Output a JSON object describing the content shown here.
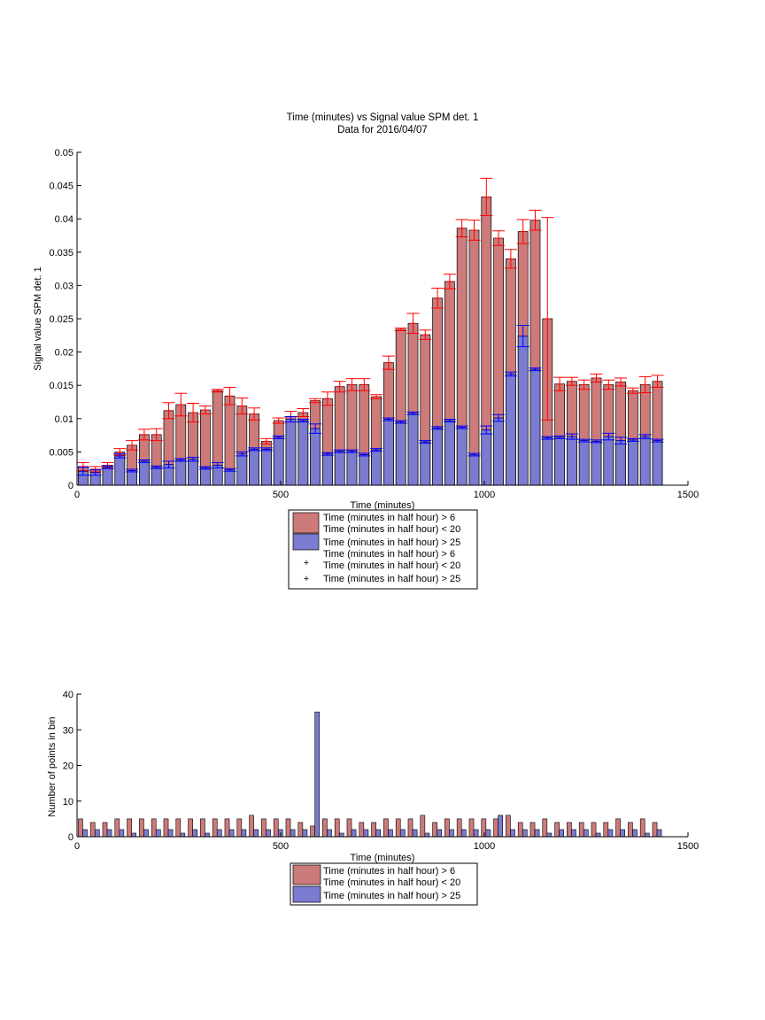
{
  "chart_data": [
    {
      "type": "bar",
      "title": "Time (minutes) vs Signal value SPM det. 1",
      "subtitle": "Data for 2016/04/07",
      "xlabel": "Time (minutes)",
      "ylabel": "Signal value SPM det. 1",
      "xlim": [
        0,
        1500
      ],
      "ylim": [
        0,
        0.05
      ],
      "xticks": [
        0,
        500,
        1000,
        1500
      ],
      "yticks": [
        0,
        0.005,
        0.01,
        0.015,
        0.02,
        0.025,
        0.03,
        0.035,
        0.04,
        0.045,
        0.05
      ],
      "xtick_labels": [
        "0",
        "500",
        "1000",
        "1500"
      ],
      "ytick_labels": [
        "0",
        "0.005",
        "0.01",
        "0.015",
        "0.02",
        "0.025",
        "0.03",
        "0.035",
        "0.04",
        "0.045",
        "0.05"
      ],
      "grid": false,
      "legend_position": "bottom-center",
      "x": [
        15,
        45,
        75,
        105,
        135,
        165,
        195,
        225,
        255,
        285,
        315,
        345,
        375,
        405,
        435,
        465,
        495,
        525,
        555,
        585,
        615,
        645,
        675,
        705,
        735,
        765,
        795,
        825,
        855,
        885,
        915,
        945,
        975,
        1005,
        1035,
        1065,
        1095,
        1125,
        1155,
        1185,
        1215,
        1245,
        1275,
        1305,
        1335,
        1365,
        1395,
        1425
      ],
      "series": [
        {
          "name": "Time (minutes in half hour) > 6\nTime (minutes in half hour) < 20",
          "color": "#cc7a7a",
          "values": [
            0.0028,
            0.0024,
            0.003,
            0.005,
            0.006,
            0.0076,
            0.0076,
            0.0112,
            0.0121,
            0.0109,
            0.0113,
            0.0142,
            0.0134,
            0.0119,
            0.0107,
            0.0066,
            0.0097,
            0.0103,
            0.0109,
            0.0127,
            0.013,
            0.0148,
            0.0151,
            0.0151,
            0.0133,
            0.0184,
            0.0234,
            0.0243,
            0.0226,
            0.0281,
            0.0306,
            0.0386,
            0.0383,
            0.0433,
            0.0371,
            0.034,
            0.0381,
            0.0398,
            0.025,
            0.0152,
            0.0156,
            0.0151,
            0.0161,
            0.0151,
            0.0155,
            0.0142,
            0.0151,
            0.0156
          ],
          "error": [
            0.0006,
            0.0004,
            0.0004,
            0.0005,
            0.0007,
            0.0008,
            0.0009,
            0.0012,
            0.0017,
            0.0014,
            0.0006,
            0.0002,
            0.0013,
            0.0012,
            0.0009,
            0.0004,
            0.0004,
            0.0008,
            0.0006,
            0.0003,
            0.001,
            0.0008,
            0.0009,
            0.0009,
            0.0003,
            0.001,
            0.0002,
            0.0015,
            0.0007,
            0.0015,
            0.0011,
            0.0013,
            0.0015,
            0.0028,
            0.0011,
            0.0014,
            0.0018,
            0.0015,
            0.0152,
            0.001,
            0.0006,
            0.0007,
            0.0006,
            0.0007,
            0.0006,
            0.0004,
            0.0012,
            0.0009
          ]
        },
        {
          "name": "Time (minutes in half hour) > 25",
          "color": "#7b7bd0",
          "values": [
            0.0021,
            0.0019,
            0.0027,
            0.0044,
            0.0022,
            0.0036,
            0.0027,
            0.0031,
            0.0038,
            0.0039,
            0.0026,
            0.003,
            0.0023,
            0.0047,
            0.0054,
            0.0054,
            0.0072,
            0.0099,
            0.0097,
            0.0085,
            0.0047,
            0.0051,
            0.0051,
            0.0046,
            0.0053,
            0.0099,
            0.0095,
            0.0108,
            0.0065,
            0.0086,
            0.0097,
            0.0087,
            0.0046,
            0.0083,
            0.0101,
            0.0167,
            0.0224,
            0.0174,
            0.0071,
            0.0072,
            0.0073,
            0.0067,
            0.0066,
            0.0073,
            0.0067,
            0.0068,
            0.0073,
            0.0067
          ],
          "error": [
            0.0006,
            0.0004,
            0.0002,
            0.0003,
            0.0002,
            0.0002,
            0.0002,
            0.0005,
            0.0002,
            0.0003,
            0.0002,
            0.0004,
            0.0002,
            0.0003,
            0.0002,
            0.0002,
            0.0002,
            0.0004,
            0.0002,
            0.0007,
            0.0002,
            0.0002,
            0.0002,
            0.0002,
            0.0002,
            0.0002,
            0.0002,
            0.0002,
            0.0002,
            0.0002,
            0.0002,
            0.0002,
            0.0002,
            0.0006,
            0.0005,
            0.0003,
            0.0016,
            0.0002,
            0.0002,
            0.0002,
            0.0004,
            0.0002,
            0.0002,
            0.0005,
            0.0005,
            0.0002,
            0.0003,
            0.0002
          ]
        }
      ],
      "markers": [
        {
          "name": "Time (minutes in half hour) > 6\nTime (minutes in half hour) < 20",
          "marker": "+",
          "color": "#ff0000"
        },
        {
          "name": "Time (minutes in half hour) > 25",
          "marker": "+",
          "color": "#0000ff"
        }
      ]
    },
    {
      "type": "bar",
      "title": "",
      "xlabel": "Time (minutes)",
      "ylabel": "Number of points in bin",
      "xlim": [
        0,
        1500
      ],
      "ylim": [
        0,
        40
      ],
      "xticks": [
        0,
        500,
        1000,
        1500
      ],
      "yticks": [
        0,
        10,
        20,
        30,
        40
      ],
      "xtick_labels": [
        "0",
        "500",
        "1000",
        "1500"
      ],
      "ytick_labels": [
        "0",
        "10",
        "20",
        "30",
        "40"
      ],
      "grid": false,
      "legend_position": "bottom-center",
      "x": [
        15,
        45,
        75,
        105,
        135,
        165,
        195,
        225,
        255,
        285,
        315,
        345,
        375,
        405,
        435,
        465,
        495,
        525,
        555,
        585,
        615,
        645,
        675,
        705,
        735,
        765,
        795,
        825,
        855,
        885,
        915,
        945,
        975,
        1005,
        1035,
        1065,
        1095,
        1125,
        1155,
        1185,
        1215,
        1245,
        1275,
        1305,
        1335,
        1365,
        1395,
        1425
      ],
      "series": [
        {
          "name": "Time (minutes in half hour) > 6\nTime (minutes in half hour) < 20",
          "color": "#cc7a7a",
          "values": [
            5,
            4,
            4,
            5,
            5,
            5,
            5,
            5,
            5,
            5,
            5,
            5,
            5,
            5,
            6,
            5,
            5,
            5,
            4,
            3,
            5,
            5,
            5,
            4,
            4,
            5,
            5,
            5,
            6,
            4,
            5,
            5,
            5,
            5,
            5,
            6,
            4,
            4,
            5,
            4,
            4,
            4,
            4,
            4,
            5,
            4,
            5,
            4
          ]
        },
        {
          "name": "Time (minutes in half hour) > 25",
          "color": "#7b7bd0",
          "values": [
            2,
            2,
            2,
            2,
            1,
            2,
            2,
            2,
            1,
            2,
            1,
            2,
            2,
            2,
            2,
            2,
            2,
            2,
            2,
            35,
            2,
            1,
            2,
            2,
            2,
            2,
            2,
            2,
            1,
            2,
            2,
            2,
            2,
            2,
            6,
            2,
            2,
            2,
            1,
            2,
            2,
            2,
            1,
            2,
            2,
            2,
            1,
            2
          ]
        }
      ]
    }
  ]
}
